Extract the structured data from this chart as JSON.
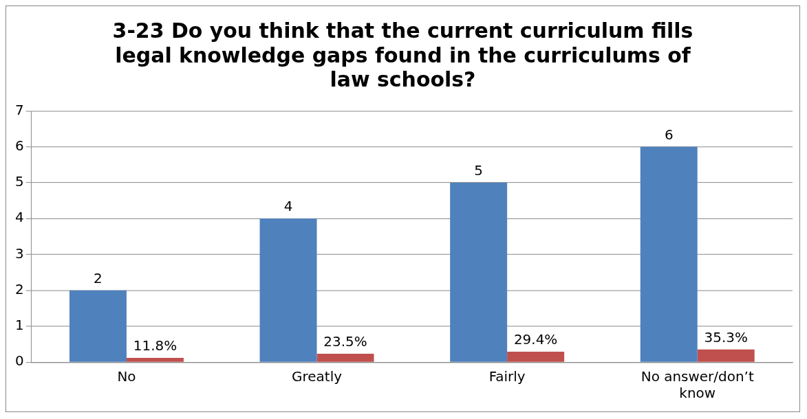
{
  "chart_data": {
    "type": "bar",
    "title": "3-23 Do you think that the current curriculum fills legal knowledge gaps found in the curriculums of law schools?",
    "categories": [
      "No",
      "Greatly",
      "Fairly",
      "No answer/don’t know"
    ],
    "series": [
      {
        "color": "#4f81bd",
        "values": [
          2,
          4,
          5,
          6
        ],
        "value_labels": [
          "2",
          "4",
          "5",
          "6"
        ]
      },
      {
        "color": "#c0504d",
        "values": [
          0.118,
          0.235,
          0.294,
          0.353
        ],
        "value_labels": [
          "11.8%",
          "23.5%",
          "29.4%",
          "35.3%"
        ]
      }
    ],
    "ylim": [
      0,
      7
    ],
    "yticks": [
      0,
      1,
      2,
      3,
      4,
      5,
      6,
      7
    ],
    "grid": "y",
    "legend": false
  }
}
